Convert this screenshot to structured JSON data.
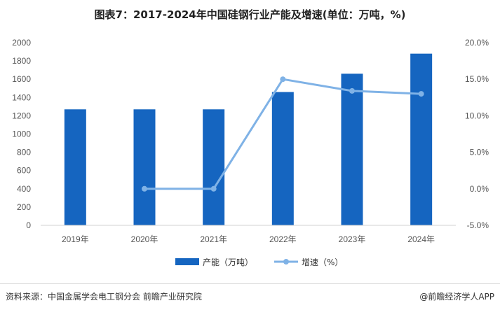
{
  "chart_data": {
    "type": "bar",
    "title": "图表7：2017-2024年中国硅钢行业产能及增速(单位：万吨，%)",
    "categories": [
      "2019年",
      "2020年",
      "2021年",
      "2022年",
      "2023年",
      "2024年"
    ],
    "series": [
      {
        "name": "产能（万吨）",
        "type": "bar",
        "axis": "left",
        "values": [
          1270,
          1270,
          1270,
          1460,
          1660,
          1880
        ],
        "color": "#1565C0"
      },
      {
        "name": "增速（%）",
        "type": "line",
        "axis": "right",
        "values": [
          null,
          0.0,
          0.0,
          15.0,
          13.4,
          13.0
        ],
        "color": "#7FB2E6"
      }
    ],
    "y_left": {
      "min": 0,
      "max": 2000,
      "step": 200,
      "ticks": [
        "0",
        "200",
        "400",
        "600",
        "800",
        "1000",
        "1200",
        "1400",
        "1600",
        "1800",
        "2000"
      ]
    },
    "y_right": {
      "min": -5,
      "max": 20,
      "step": 5,
      "ticks": [
        "-5.0%",
        "0.0%",
        "5.0%",
        "10.0%",
        "15.0%",
        "20.0%"
      ]
    },
    "legend_position": "bottom",
    "grid": false
  },
  "footer": {
    "source": "资料来源：中国金属学会电工钢分会 前瞻产业研究院",
    "brand": "@前瞻经济学人APP"
  }
}
